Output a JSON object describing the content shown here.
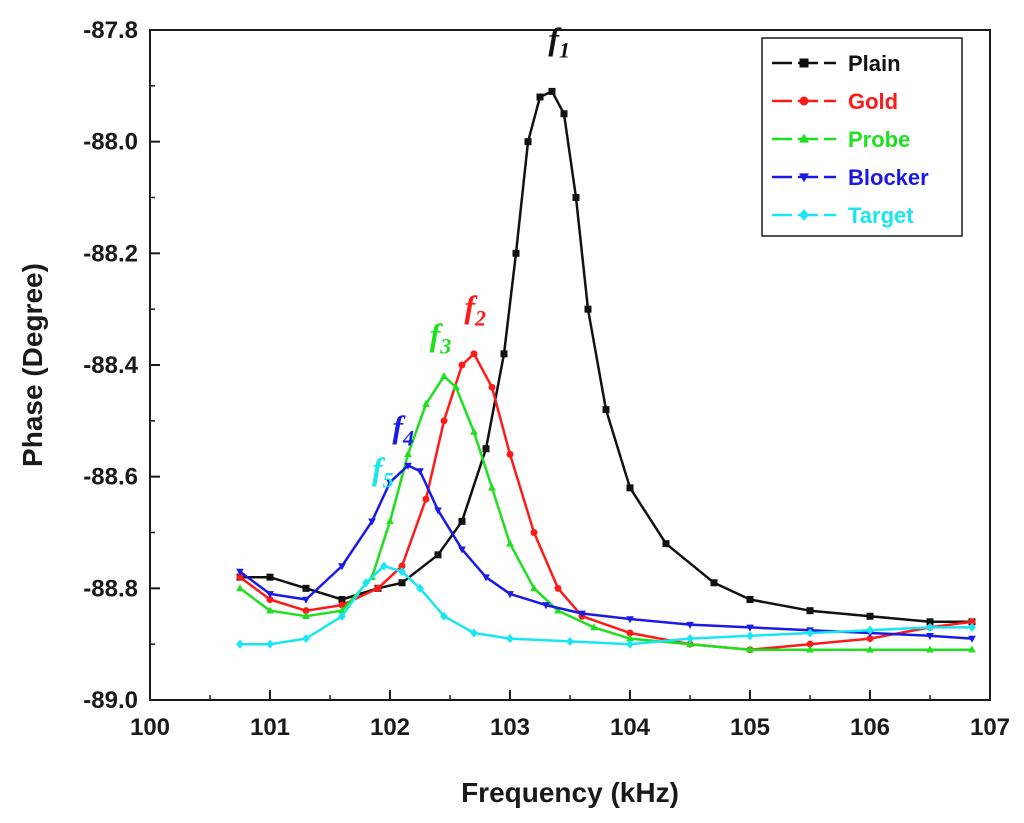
{
  "chart_data": {
    "type": "line",
    "title": "",
    "xlabel": "Frequency (kHz)",
    "ylabel": "Phase (Degree)",
    "xlim": [
      100,
      107
    ],
    "ylim": [
      -89.0,
      -87.8
    ],
    "x_ticks": [
      "100",
      "101",
      "102",
      "103",
      "104",
      "105",
      "106",
      "107"
    ],
    "y_ticks": [
      "-87.8",
      "-88.0",
      "-88.2",
      "-88.4",
      "-88.6",
      "-88.8",
      "-89.0"
    ],
    "grid": false,
    "legend_position": "top-right",
    "series": [
      {
        "name": "Plain",
        "color": "#111111",
        "marker": "square",
        "points": [
          [
            100.75,
            -88.78
          ],
          [
            101.0,
            -88.78
          ],
          [
            101.3,
            -88.8
          ],
          [
            101.6,
            -88.82
          ],
          [
            101.9,
            -88.8
          ],
          [
            102.1,
            -88.79
          ],
          [
            102.4,
            -88.74
          ],
          [
            102.6,
            -88.68
          ],
          [
            102.8,
            -88.55
          ],
          [
            102.95,
            -88.38
          ],
          [
            103.05,
            -88.2
          ],
          [
            103.15,
            -88.0
          ],
          [
            103.25,
            -87.92
          ],
          [
            103.35,
            -87.91
          ],
          [
            103.45,
            -87.95
          ],
          [
            103.55,
            -88.1
          ],
          [
            103.65,
            -88.3
          ],
          [
            103.8,
            -88.48
          ],
          [
            104.0,
            -88.62
          ],
          [
            104.3,
            -88.72
          ],
          [
            104.7,
            -88.79
          ],
          [
            105.0,
            -88.82
          ],
          [
            105.5,
            -88.84
          ],
          [
            106.0,
            -88.85
          ],
          [
            106.5,
            -88.86
          ],
          [
            106.85,
            -88.86
          ]
        ]
      },
      {
        "name": "Gold",
        "color": "#ff1a1a",
        "marker": "circle",
        "points": [
          [
            100.75,
            -88.78
          ],
          [
            101.0,
            -88.82
          ],
          [
            101.3,
            -88.84
          ],
          [
            101.6,
            -88.83
          ],
          [
            101.9,
            -88.8
          ],
          [
            102.1,
            -88.76
          ],
          [
            102.3,
            -88.64
          ],
          [
            102.45,
            -88.5
          ],
          [
            102.6,
            -88.4
          ],
          [
            102.7,
            -88.38
          ],
          [
            102.85,
            -88.44
          ],
          [
            103.0,
            -88.56
          ],
          [
            103.2,
            -88.7
          ],
          [
            103.4,
            -88.8
          ],
          [
            103.6,
            -88.85
          ],
          [
            104.0,
            -88.88
          ],
          [
            104.5,
            -88.9
          ],
          [
            105.0,
            -88.91
          ],
          [
            105.5,
            -88.9
          ],
          [
            106.0,
            -88.89
          ],
          [
            106.5,
            -88.87
          ],
          [
            106.85,
            -88.86
          ]
        ]
      },
      {
        "name": "Probe",
        "color": "#1ee01e",
        "marker": "triangle",
        "points": [
          [
            100.75,
            -88.8
          ],
          [
            101.0,
            -88.84
          ],
          [
            101.3,
            -88.85
          ],
          [
            101.6,
            -88.84
          ],
          [
            101.85,
            -88.78
          ],
          [
            102.0,
            -88.68
          ],
          [
            102.15,
            -88.56
          ],
          [
            102.3,
            -88.47
          ],
          [
            102.45,
            -88.42
          ],
          [
            102.55,
            -88.44
          ],
          [
            102.7,
            -88.52
          ],
          [
            102.85,
            -88.62
          ],
          [
            103.0,
            -88.72
          ],
          [
            103.2,
            -88.8
          ],
          [
            103.4,
            -88.84
          ],
          [
            103.7,
            -88.87
          ],
          [
            104.0,
            -88.89
          ],
          [
            104.5,
            -88.9
          ],
          [
            105.0,
            -88.91
          ],
          [
            105.5,
            -88.91
          ],
          [
            106.0,
            -88.91
          ],
          [
            106.5,
            -88.91
          ],
          [
            106.85,
            -88.91
          ]
        ]
      },
      {
        "name": "Blocker",
        "color": "#1a1ae6",
        "marker": "triangle-down",
        "points": [
          [
            100.75,
            -88.77
          ],
          [
            101.0,
            -88.81
          ],
          [
            101.3,
            -88.82
          ],
          [
            101.6,
            -88.76
          ],
          [
            101.85,
            -88.68
          ],
          [
            102.0,
            -88.61
          ],
          [
            102.15,
            -88.58
          ],
          [
            102.25,
            -88.59
          ],
          [
            102.4,
            -88.66
          ],
          [
            102.6,
            -88.73
          ],
          [
            102.8,
            -88.78
          ],
          [
            103.0,
            -88.81
          ],
          [
            103.3,
            -88.83
          ],
          [
            103.6,
            -88.845
          ],
          [
            104.0,
            -88.855
          ],
          [
            104.5,
            -88.865
          ],
          [
            105.0,
            -88.87
          ],
          [
            105.5,
            -88.875
          ],
          [
            106.0,
            -88.88
          ],
          [
            106.5,
            -88.885
          ],
          [
            106.85,
            -88.89
          ]
        ]
      },
      {
        "name": "Target",
        "color": "#19e6f0",
        "marker": "diamond",
        "points": [
          [
            100.75,
            -88.9
          ],
          [
            101.0,
            -88.9
          ],
          [
            101.3,
            -88.89
          ],
          [
            101.6,
            -88.85
          ],
          [
            101.8,
            -88.79
          ],
          [
            101.95,
            -88.76
          ],
          [
            102.1,
            -88.77
          ],
          [
            102.25,
            -88.8
          ],
          [
            102.45,
            -88.85
          ],
          [
            102.7,
            -88.88
          ],
          [
            103.0,
            -88.89
          ],
          [
            103.5,
            -88.895
          ],
          [
            104.0,
            -88.9
          ],
          [
            104.5,
            -88.89
          ],
          [
            105.0,
            -88.885
          ],
          [
            105.5,
            -88.88
          ],
          [
            106.0,
            -88.875
          ],
          [
            106.5,
            -88.87
          ],
          [
            106.85,
            -88.87
          ]
        ]
      }
    ],
    "annotations": [
      {
        "main": "f",
        "sub": "1",
        "color": "#111111",
        "x": 103.32,
        "y": -87.835
      },
      {
        "main": "f",
        "sub": "2",
        "color": "#ff1a1a",
        "x": 102.62,
        "y": -88.315
      },
      {
        "main": "f",
        "sub": "3",
        "color": "#1ee01e",
        "x": 102.33,
        "y": -88.365
      },
      {
        "main": "f",
        "sub": "4",
        "color": "#1a1ae6",
        "x": 102.02,
        "y": -88.53
      },
      {
        "main": "f",
        "sub": "5",
        "color": "#19e6f0",
        "x": 101.85,
        "y": -88.605
      }
    ]
  }
}
